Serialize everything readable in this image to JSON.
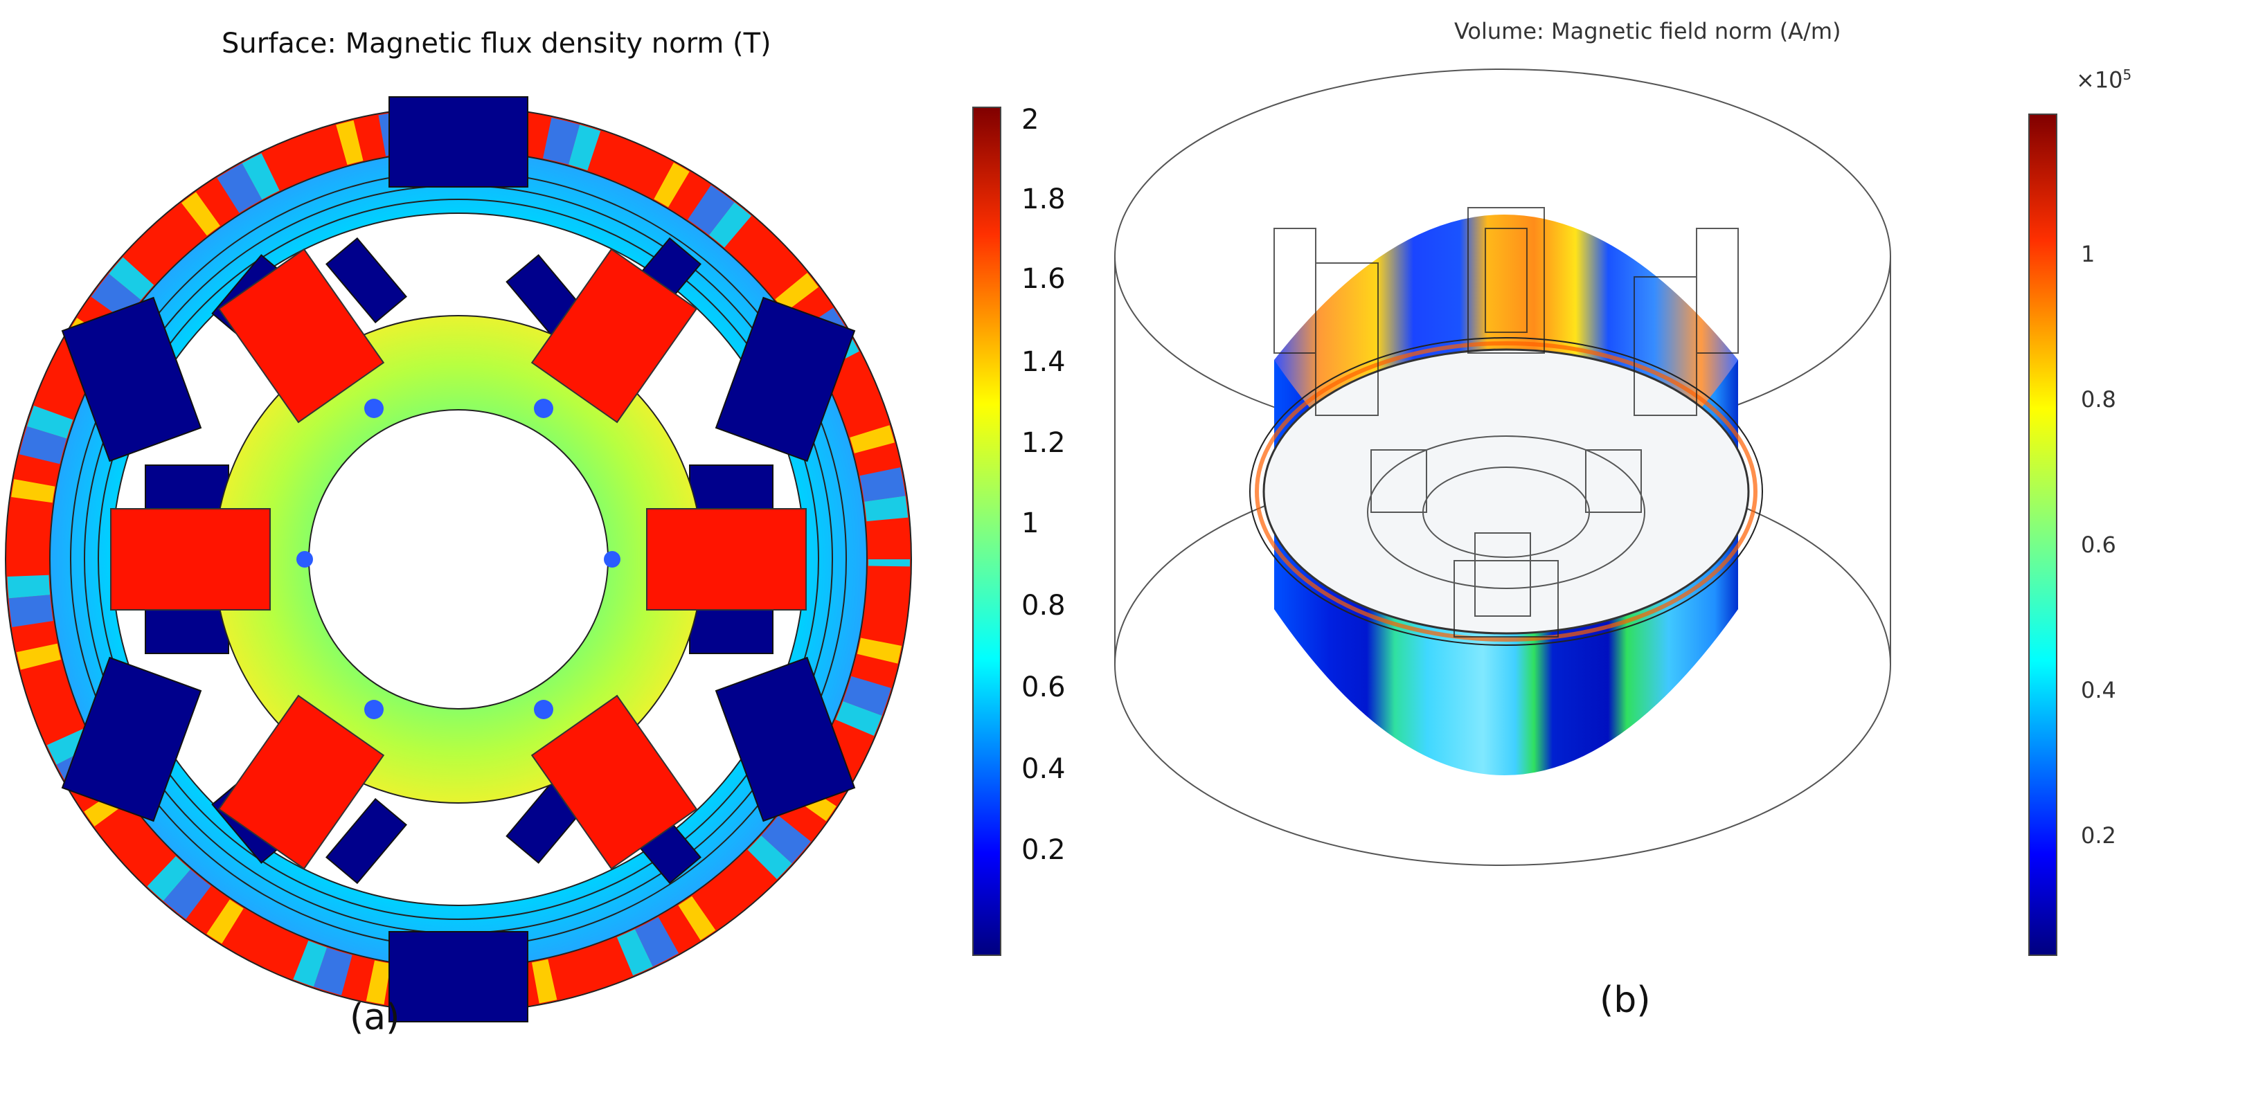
{
  "panel_a": {
    "title": "Surface: Magnetic flux density norm (T)",
    "caption": "(a)",
    "colorbar_ticks": [
      "2",
      "1.8",
      "1.6",
      "1.4",
      "1.2",
      "1",
      "0.8",
      "0.6",
      "0.4",
      "0.2"
    ],
    "colorbar_range": [
      0.02,
      2.08
    ]
  },
  "panel_b": {
    "title": "Volume: Magnetic field norm (A/m)",
    "caption": "(b)",
    "colorbar_multiplier": "×10",
    "colorbar_exponent": "5",
    "colorbar_ticks": [
      "1",
      "0.8",
      "0.6",
      "0.4",
      "0.2"
    ],
    "colorbar_range": [
      0.02,
      1.18
    ]
  },
  "colors": {
    "jet_dark_red": "#800000",
    "jet_red": "#ff0000",
    "jet_orange": "#ff8000",
    "jet_yellow": "#ffff00",
    "jet_green": "#80ff80",
    "jet_cyan": "#00ffff",
    "jet_blue": "#0060ff",
    "jet_dark_blue": "#00007f"
  }
}
